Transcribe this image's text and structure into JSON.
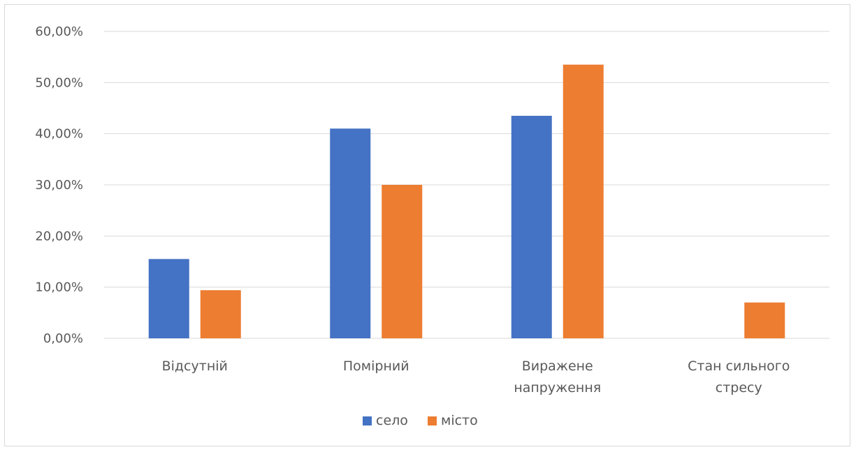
{
  "chart_data": {
    "type": "bar",
    "categories": [
      [
        "Відсутній"
      ],
      [
        "Помірний"
      ],
      [
        "Виражене",
        "напруження"
      ],
      [
        "Стан сильного",
        "стресу"
      ]
    ],
    "series": [
      {
        "name": "село",
        "color": "#4472c4",
        "values": [
          0.155,
          0.41,
          0.435,
          0.0
        ]
      },
      {
        "name": "місто",
        "color": "#ed7d31",
        "values": [
          0.094,
          0.3,
          0.535,
          0.07
        ]
      }
    ],
    "yticks": [
      "0,00%",
      "10,00%",
      "20,00%",
      "30,00%",
      "40,00%",
      "50,00%",
      "60,00%"
    ],
    "ylim": [
      0,
      0.6
    ],
    "grid": true,
    "legend_position": "bottom",
    "title": "",
    "xlabel": "",
    "ylabel": ""
  }
}
